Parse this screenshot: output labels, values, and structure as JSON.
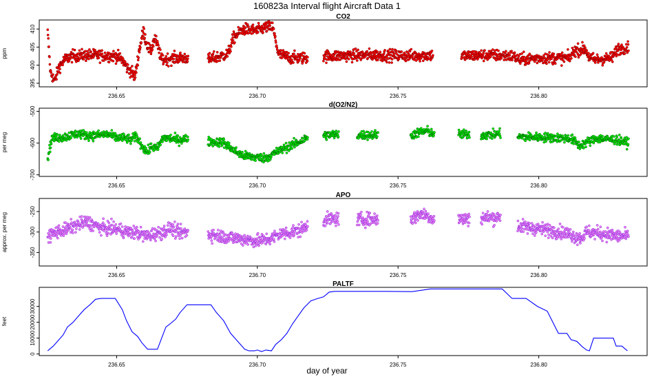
{
  "page": {
    "title": "160823a   Interval flight Aircraft Data 1",
    "xlabel": "day of year"
  },
  "chart_data": [
    {
      "type": "scatter",
      "title": "CO2",
      "ylabel": "ppm",
      "color": "#ff0000",
      "edge_color": "#7a0000",
      "xlim": [
        236.6225,
        236.8385
      ],
      "ylim": [
        394,
        412.5
      ],
      "yticks": [
        395,
        400,
        405,
        410
      ],
      "xticks": [
        236.65,
        236.7,
        236.75,
        236.8
      ],
      "xticklabels": [
        "236.65",
        "236.70",
        "236.75",
        "236.80"
      ],
      "noise": 0.8,
      "segments": [
        [
          [
            236.6255,
            409
          ],
          [
            236.6265,
            398
          ],
          [
            236.628,
            395.5
          ],
          [
            236.6295,
            399.5
          ],
          [
            236.6315,
            401.5
          ],
          [
            236.634,
            402.5
          ],
          [
            236.64,
            402.8
          ],
          [
            236.65,
            402.5
          ],
          [
            236.652,
            401.5
          ],
          [
            236.654,
            399
          ],
          [
            236.6555,
            398
          ],
          [
            236.6565,
            396.5
          ],
          [
            236.658,
            404
          ],
          [
            236.6595,
            409.5
          ],
          [
            236.6605,
            406.5
          ],
          [
            236.662,
            403.5
          ],
          [
            236.6635,
            407.5
          ],
          [
            236.6645,
            405.5
          ],
          [
            236.666,
            401.5
          ],
          [
            236.672,
            402
          ],
          [
            236.6755,
            402
          ]
        ],
        [
          [
            236.6825,
            401.5
          ],
          [
            236.687,
            402.5
          ],
          [
            236.6895,
            403
          ],
          [
            236.6915,
            407.5
          ],
          [
            236.695,
            410
          ],
          [
            236.7,
            409.5
          ],
          [
            236.703,
            410.5
          ],
          [
            236.7055,
            410.5
          ],
          [
            236.7075,
            403
          ],
          [
            236.712,
            402
          ],
          [
            236.718,
            402
          ]
        ],
        [
          [
            236.7235,
            402.5
          ],
          [
            236.74,
            402.8
          ],
          [
            236.755,
            402.6
          ],
          [
            236.7625,
            402.8
          ]
        ],
        [
          [
            236.7725,
            402.5
          ],
          [
            236.782,
            402.8
          ],
          [
            236.791,
            402.5
          ],
          [
            236.793,
            401.5
          ],
          [
            236.8,
            402
          ],
          [
            236.811,
            402
          ],
          [
            236.8125,
            404
          ],
          [
            236.8165,
            404.5
          ],
          [
            236.818,
            402
          ],
          [
            236.82,
            401.5
          ],
          [
            236.826,
            402
          ],
          [
            236.828,
            404.5
          ],
          [
            236.832,
            405
          ]
        ]
      ]
    },
    {
      "type": "scatter",
      "title": "d(O2/N2)",
      "ylabel": "per meg",
      "color": "#00ee00",
      "edge_color": "#006400",
      "xlim": [
        236.6225,
        236.8385
      ],
      "ylim": [
        -705,
        -490
      ],
      "yticks": [
        -700,
        -600,
        -500
      ],
      "xticks": [
        236.65,
        236.7,
        236.75,
        236.8
      ],
      "xticklabels": [
        "236.65",
        "236.70",
        "236.75",
        "236.80"
      ],
      "noise": 7,
      "segments": [
        [
          [
            236.6255,
            -648
          ],
          [
            236.627,
            -585
          ],
          [
            236.632,
            -580
          ],
          [
            236.636,
            -570
          ],
          [
            236.641,
            -577
          ],
          [
            236.647,
            -572
          ],
          [
            236.6495,
            -582
          ],
          [
            236.6535,
            -585
          ],
          [
            236.655,
            -590
          ],
          [
            236.657,
            -578
          ],
          [
            236.6595,
            -615
          ],
          [
            236.661,
            -628
          ],
          [
            236.6625,
            -610
          ],
          [
            236.6645,
            -618
          ],
          [
            236.6665,
            -583
          ],
          [
            236.669,
            -585
          ],
          [
            236.672,
            -590
          ],
          [
            236.6755,
            -585
          ]
        ],
        [
          [
            236.6825,
            -595
          ],
          [
            236.688,
            -598
          ],
          [
            236.6915,
            -622
          ],
          [
            236.695,
            -640
          ],
          [
            236.7,
            -645
          ],
          [
            236.703,
            -647
          ],
          [
            236.7065,
            -630
          ],
          [
            236.71,
            -615
          ],
          [
            236.714,
            -600
          ],
          [
            236.718,
            -582
          ]
        ],
        [
          [
            236.7235,
            -575
          ],
          [
            236.729,
            -573
          ]
        ],
        [
          [
            236.7355,
            -575
          ],
          [
            236.743,
            -574
          ]
        ],
        [
          [
            236.7545,
            -575
          ],
          [
            236.758,
            -565
          ],
          [
            236.7605,
            -562
          ],
          [
            236.763,
            -572
          ]
        ],
        [
          [
            236.7715,
            -573
          ],
          [
            236.7755,
            -573
          ]
        ],
        [
          [
            236.7795,
            -575
          ],
          [
            236.784,
            -573
          ],
          [
            236.7865,
            -570
          ]
        ],
        [
          [
            236.7925,
            -580
          ],
          [
            236.802,
            -582
          ],
          [
            236.811,
            -585
          ],
          [
            236.8125,
            -592
          ],
          [
            236.8145,
            -608
          ],
          [
            236.8165,
            -600
          ],
          [
            236.8205,
            -585
          ],
          [
            236.828,
            -590
          ],
          [
            236.832,
            -600
          ]
        ]
      ]
    },
    {
      "type": "scatter",
      "title": "APO",
      "ylabel": "approx. per meg",
      "color": "#ee82ee",
      "edge_color": "#8a2be2",
      "xlim": [
        236.6225,
        236.8385
      ],
      "ylim": [
        -383,
        -218
      ],
      "yticks": [
        -350,
        -300,
        -250
      ],
      "xticks": [
        236.65,
        236.7,
        236.75,
        236.8
      ],
      "xticklabels": [
        "236.65",
        "236.70",
        "236.75",
        "236.80"
      ],
      "noise": 8,
      "segments": [
        [
          [
            236.6255,
            -310
          ],
          [
            236.6285,
            -300
          ],
          [
            236.6315,
            -295
          ],
          [
            236.635,
            -285
          ],
          [
            236.6395,
            -275
          ],
          [
            236.6445,
            -290
          ],
          [
            236.6505,
            -293
          ],
          [
            236.654,
            -300
          ],
          [
            236.6575,
            -302
          ],
          [
            236.6605,
            -310
          ],
          [
            236.663,
            -305
          ],
          [
            236.6665,
            -300
          ],
          [
            236.669,
            -290
          ],
          [
            236.672,
            -302
          ],
          [
            236.6755,
            -300
          ]
        ],
        [
          [
            236.6825,
            -305
          ],
          [
            236.69,
            -313
          ],
          [
            236.696,
            -318
          ],
          [
            236.7,
            -322
          ],
          [
            236.7045,
            -317
          ],
          [
            236.708,
            -305
          ],
          [
            236.712,
            -300
          ],
          [
            236.7155,
            -295
          ],
          [
            236.718,
            -282
          ]
        ],
        [
          [
            236.7235,
            -270
          ],
          [
            236.729,
            -268
          ]
        ],
        [
          [
            236.7355,
            -270
          ],
          [
            236.743,
            -268
          ]
        ],
        [
          [
            236.7545,
            -270
          ],
          [
            236.758,
            -255
          ],
          [
            236.7605,
            -260
          ],
          [
            236.763,
            -270
          ]
        ],
        [
          [
            236.7715,
            -268
          ],
          [
            236.7755,
            -268
          ]
        ],
        [
          [
            236.7795,
            -265
          ],
          [
            236.784,
            -265
          ],
          [
            236.7865,
            -262
          ]
        ],
        [
          [
            236.7925,
            -285
          ],
          [
            236.8,
            -292
          ],
          [
            236.808,
            -300
          ],
          [
            236.811,
            -305
          ],
          [
            236.8125,
            -310
          ],
          [
            236.815,
            -315
          ],
          [
            236.817,
            -300
          ],
          [
            236.8215,
            -303
          ],
          [
            236.828,
            -310
          ],
          [
            236.832,
            -310
          ]
        ]
      ]
    },
    {
      "type": "line",
      "title": "PALTF",
      "ylabel": "feet",
      "color": "#0000ff",
      "xlim": [
        236.6225,
        236.8385
      ],
      "ylim": [
        -1000,
        42000
      ],
      "yticks": [
        0,
        10000,
        20000,
        30000
      ],
      "xticks": [
        236.65,
        236.7,
        236.75,
        236.8
      ],
      "xticklabels": [
        "236.65",
        "236.70",
        "236.75",
        "236.80"
      ],
      "x": [
        236.6255,
        236.6275,
        236.6295,
        236.631,
        236.6325,
        236.6345,
        236.6365,
        236.6385,
        236.6405,
        236.6425,
        236.6445,
        236.6495,
        236.652,
        236.6535,
        236.6555,
        236.6575,
        236.659,
        236.661,
        236.6625,
        236.6645,
        236.666,
        236.6675,
        236.669,
        236.671,
        236.6725,
        236.675,
        236.6835,
        236.6855,
        236.688,
        236.6905,
        236.693,
        236.6955,
        236.697,
        236.699,
        236.7,
        236.7015,
        236.703,
        236.705,
        236.7065,
        236.7085,
        236.7105,
        236.7125,
        236.7145,
        236.7165,
        236.719,
        236.7215,
        236.7235,
        236.7255,
        236.7275,
        236.7295,
        236.7355,
        236.745,
        236.755,
        236.7615,
        236.765,
        236.775,
        236.7815,
        236.787,
        236.7905,
        236.7955,
        236.7995,
        236.803,
        236.807,
        236.8085,
        236.81,
        236.8115,
        236.8135,
        236.8155,
        236.817,
        236.818,
        236.8195,
        236.824,
        236.8265,
        236.8275,
        236.8295,
        236.8315
      ],
      "y": [
        2000,
        5000,
        9000,
        12000,
        17000,
        20000,
        24000,
        28000,
        31000,
        34500,
        35000,
        35000,
        28000,
        21000,
        14000,
        11000,
        7000,
        3000,
        3000,
        3000,
        10000,
        17000,
        19000,
        22000,
        26000,
        31000,
        31000,
        26000,
        21000,
        13000,
        8000,
        3000,
        2000,
        2000,
        2500,
        1500,
        2500,
        2000,
        6000,
        9000,
        13000,
        19000,
        24000,
        29000,
        33500,
        35000,
        36000,
        39000,
        39500,
        39500,
        39500,
        39500,
        39300,
        41000,
        41000,
        41000,
        41000,
        41000,
        35000,
        35000,
        30000,
        27000,
        13000,
        13000,
        13000,
        9000,
        8000,
        4500,
        2500,
        2000,
        10000,
        10000,
        10000,
        5000,
        5000,
        2000
      ]
    }
  ]
}
